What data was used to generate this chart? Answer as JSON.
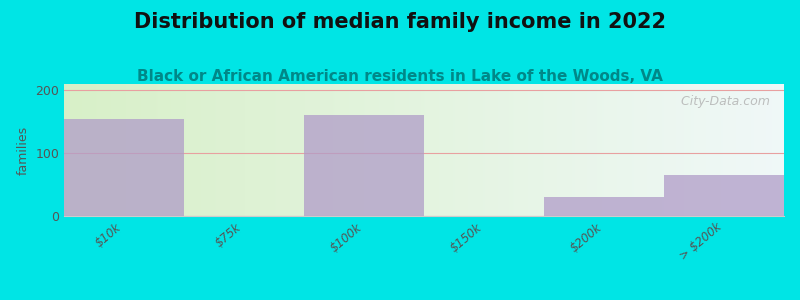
{
  "title": "Distribution of median family income in 2022",
  "subtitle": "Black or African American residents in Lake of the Woods, VA",
  "categories": [
    "$10k",
    "$75k",
    "$100k",
    "$150k",
    "$200k",
    "> $200k"
  ],
  "values": [
    155,
    0,
    160,
    0,
    30,
    65
  ],
  "bar_color": "#b09cc8",
  "background_outer": "#00e5e5",
  "ylabel": "families",
  "ylim": [
    0,
    210
  ],
  "yticks": [
    0,
    100,
    200
  ],
  "grid_color": "#e8a0a0",
  "title_fontsize": 15,
  "subtitle_fontsize": 11,
  "watermark": " City-Data.com",
  "watermark_color": "#b0b0b0"
}
